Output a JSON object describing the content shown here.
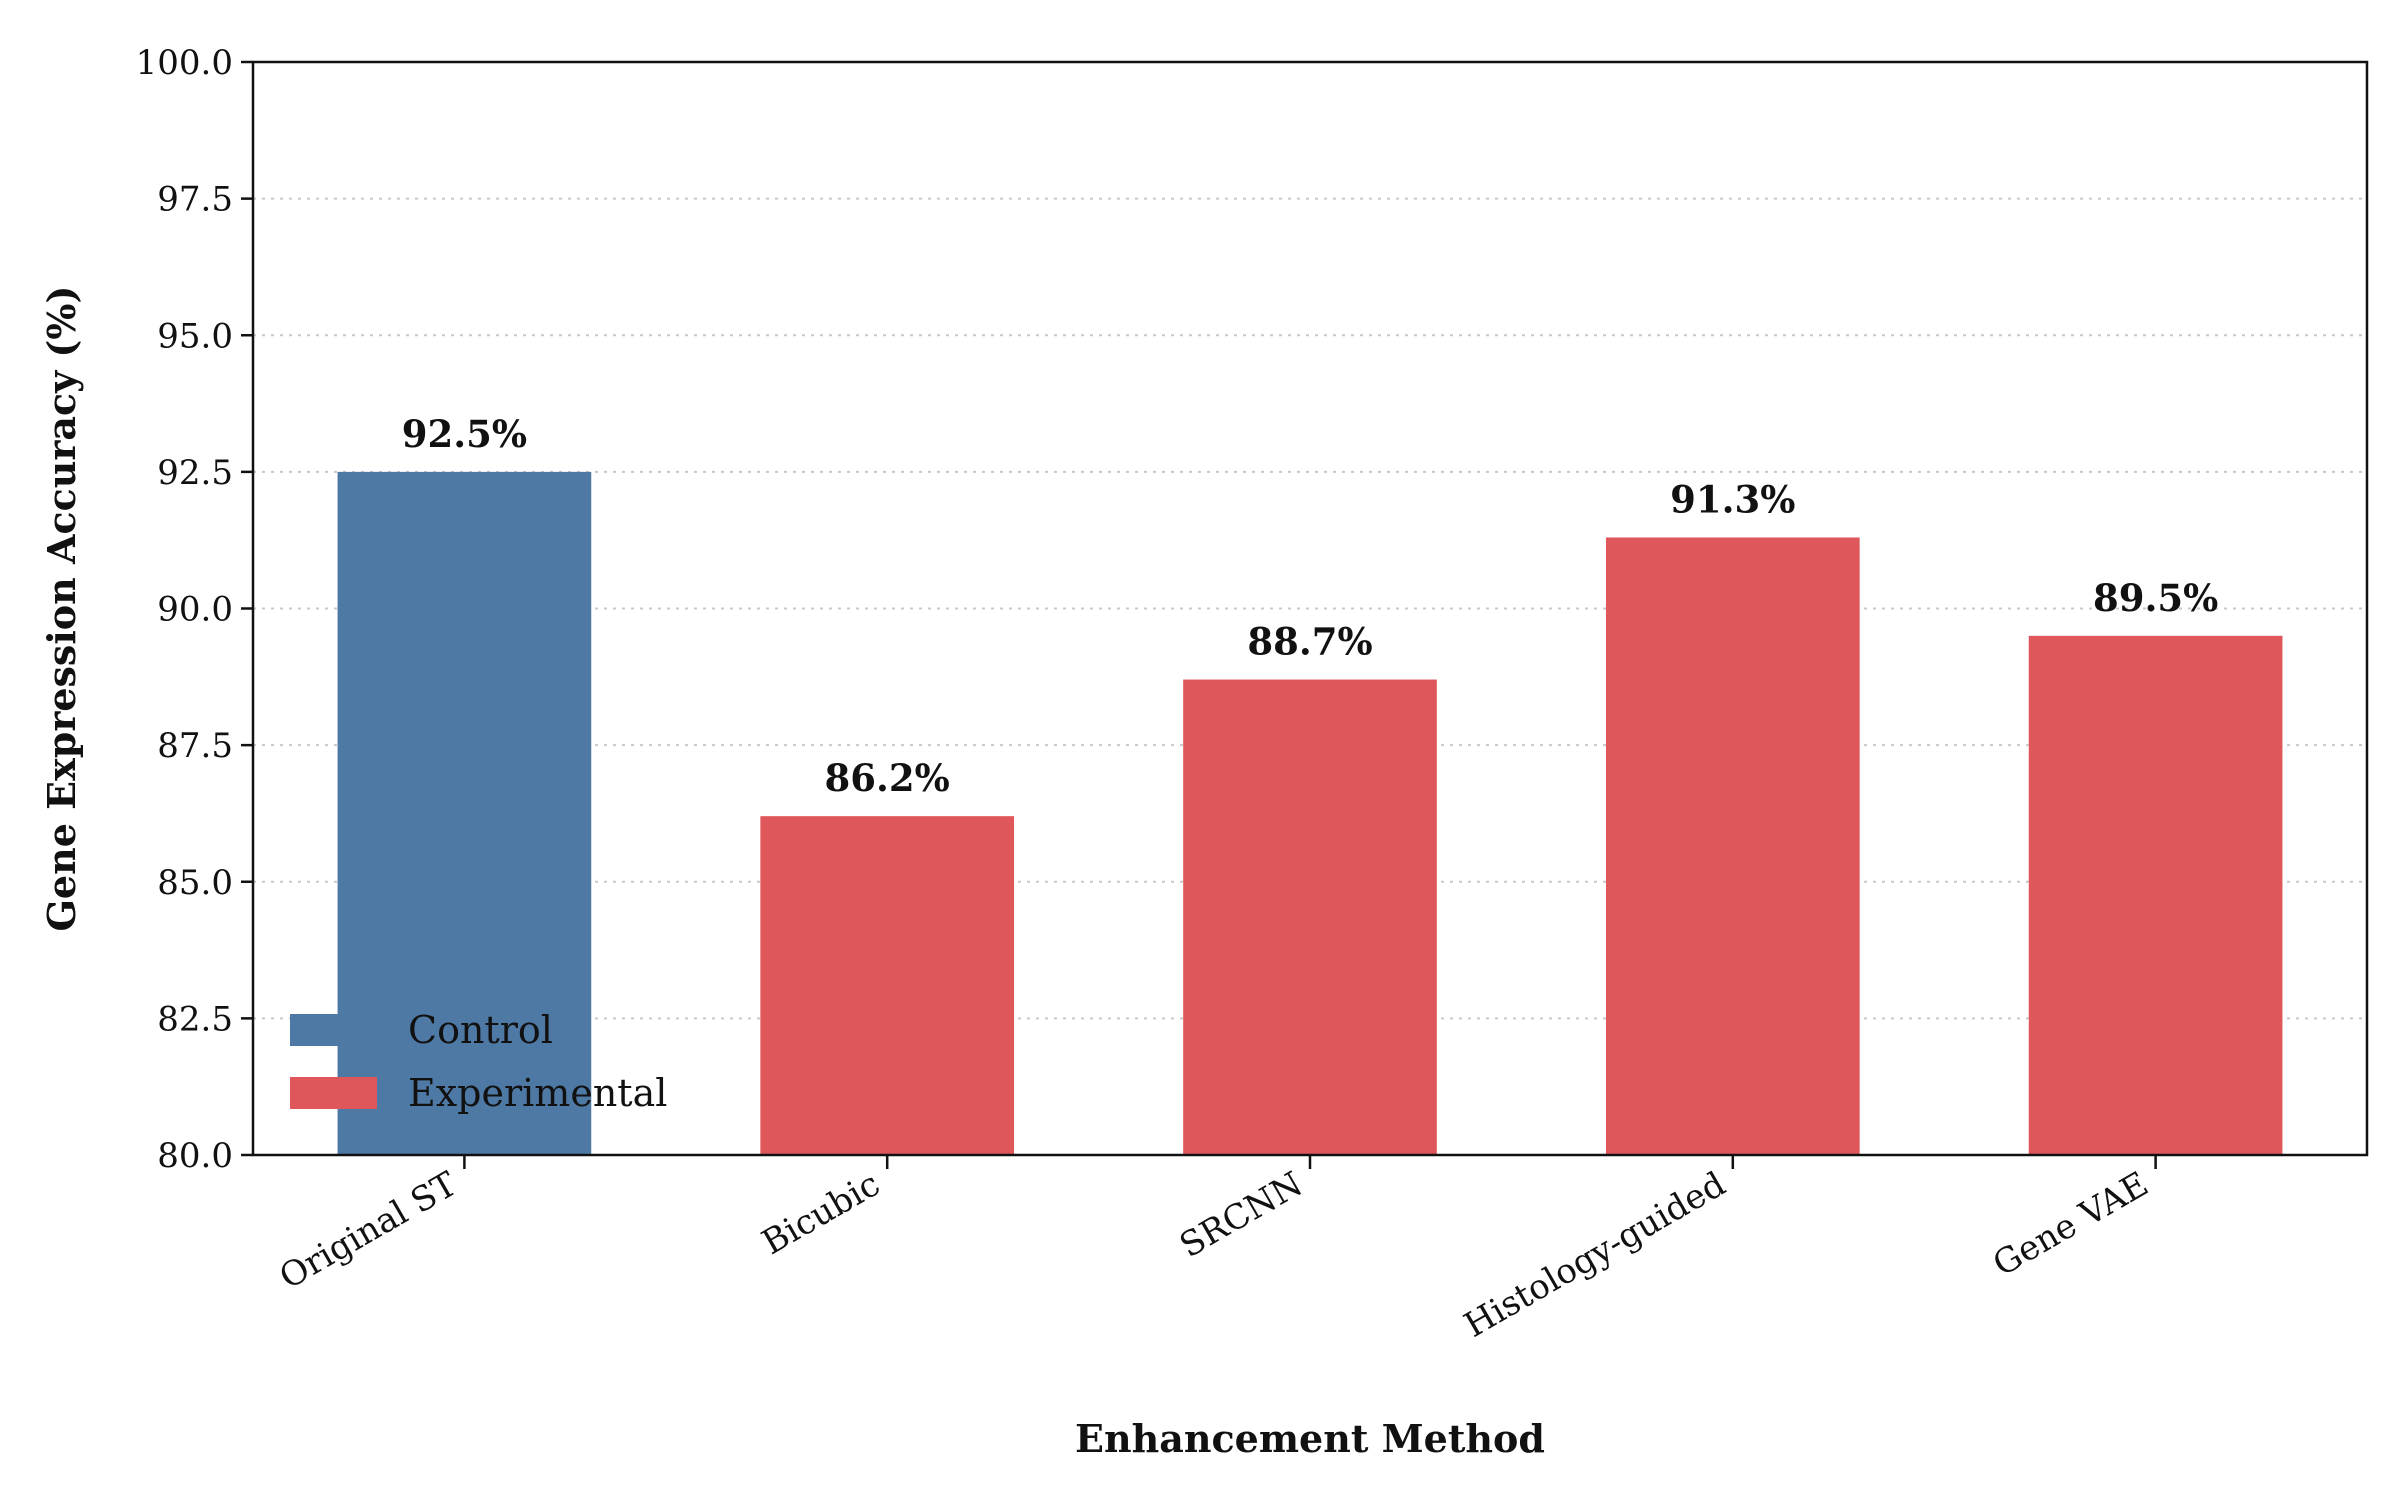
{
  "chart_data": {
    "type": "bar",
    "title": "",
    "xlabel": "Enhancement Method",
    "ylabel": "Gene Expression Accuracy (%)",
    "ylim": [
      80.0,
      100.0
    ],
    "yticks": [
      "80.0",
      "82.5",
      "85.0",
      "87.5",
      "90.0",
      "92.5",
      "95.0",
      "97.5",
      "100.0"
    ],
    "categories": [
      "Original ST",
      "Bicubic",
      "SRCNN",
      "Histology-guided",
      "Gene VAE"
    ],
    "values": [
      92.5,
      86.2,
      88.7,
      91.3,
      89.5
    ],
    "value_labels": [
      "92.5%",
      "86.2%",
      "88.7%",
      "91.3%",
      "89.5%"
    ],
    "groups": [
      "Control",
      "Experimental",
      "Experimental",
      "Experimental",
      "Experimental"
    ],
    "grid": "y-dotted",
    "legend": {
      "placement": "lower-left",
      "entries": [
        {
          "label": "Control",
          "color": "#4f79a5"
        },
        {
          "label": "Experimental",
          "color": "#e0575b"
        }
      ]
    }
  }
}
